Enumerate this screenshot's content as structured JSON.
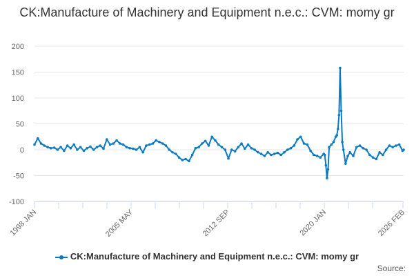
{
  "chart_data": {
    "type": "line",
    "title": "CK:Manufacture of Machinery and Equipment n.e.c.: CVM: momy gr",
    "xlabel": "",
    "ylabel": "",
    "ylim": [
      -100,
      200
    ],
    "yticks": [
      -100,
      -50,
      0,
      50,
      100,
      150,
      200
    ],
    "xlim": [
      "1998-01",
      "2026-02"
    ],
    "xtick_labels": [
      "1998 JAN",
      "2005 MAY",
      "2012 SEP",
      "2020 JAN",
      "2026 FEB"
    ],
    "grid": true,
    "legend_position": "bottom",
    "color": "#0a7ac2",
    "series": [
      {
        "name": "CK:Manufacture of Machinery and Equipment n.e.c.: CVM: momy gr",
        "x": [
          "1998-01",
          "1998-04",
          "1998-07",
          "1998-10",
          "1999-01",
          "1999-04",
          "1999-07",
          "1999-10",
          "2000-01",
          "2000-04",
          "2000-07",
          "2000-10",
          "2001-01",
          "2001-04",
          "2001-07",
          "2001-10",
          "2002-01",
          "2002-04",
          "2002-07",
          "2002-10",
          "2003-01",
          "2003-04",
          "2003-07",
          "2003-10",
          "2004-01",
          "2004-04",
          "2004-07",
          "2004-10",
          "2005-01",
          "2005-04",
          "2005-07",
          "2005-10",
          "2006-01",
          "2006-04",
          "2006-07",
          "2006-10",
          "2007-01",
          "2007-04",
          "2007-07",
          "2007-10",
          "2008-01",
          "2008-04",
          "2008-07",
          "2008-10",
          "2009-01",
          "2009-04",
          "2009-07",
          "2009-10",
          "2010-01",
          "2010-04",
          "2010-07",
          "2010-10",
          "2011-01",
          "2011-04",
          "2011-07",
          "2011-10",
          "2012-01",
          "2012-04",
          "2012-07",
          "2012-10",
          "2013-01",
          "2013-04",
          "2013-07",
          "2013-10",
          "2014-01",
          "2014-04",
          "2014-07",
          "2014-10",
          "2015-01",
          "2015-04",
          "2015-07",
          "2015-10",
          "2016-01",
          "2016-04",
          "2016-07",
          "2016-10",
          "2017-01",
          "2017-04",
          "2017-07",
          "2017-10",
          "2018-01",
          "2018-04",
          "2018-07",
          "2018-10",
          "2019-01",
          "2019-04",
          "2019-07",
          "2019-10",
          "2020-01",
          "2020-02",
          "2020-03",
          "2020-04",
          "2020-05",
          "2020-06",
          "2020-08",
          "2020-10",
          "2020-12",
          "2021-01",
          "2021-02",
          "2021-03",
          "2021-04",
          "2021-05",
          "2021-06",
          "2021-07",
          "2021-09",
          "2021-11",
          "2022-01",
          "2022-04",
          "2022-07",
          "2022-10",
          "2023-01",
          "2023-04",
          "2023-07",
          "2023-10",
          "2024-01",
          "2024-04",
          "2024-07",
          "2024-10",
          "2025-01",
          "2025-04",
          "2025-07",
          "2025-10",
          "2026-01",
          "2026-02"
        ],
        "values": [
          10,
          22,
          12,
          8,
          5,
          3,
          4,
          0,
          5,
          -2,
          8,
          3,
          10,
          0,
          5,
          -2,
          3,
          6,
          0,
          5,
          8,
          2,
          20,
          10,
          12,
          18,
          12,
          10,
          5,
          3,
          2,
          0,
          5,
          -5,
          8,
          10,
          12,
          18,
          15,
          12,
          8,
          0,
          -5,
          -8,
          -15,
          -20,
          -18,
          -22,
          -10,
          3,
          5,
          12,
          17,
          8,
          25,
          18,
          10,
          5,
          0,
          -17,
          0,
          -3,
          5,
          12,
          2,
          10,
          3,
          0,
          -5,
          -8,
          -12,
          -5,
          -10,
          -8,
          -6,
          -10,
          -5,
          0,
          3,
          8,
          20,
          25,
          12,
          10,
          -2,
          -10,
          -12,
          -15,
          -8,
          -10,
          -30,
          -55,
          -38,
          5,
          10,
          15,
          25,
          28,
          40,
          67,
          158,
          75,
          15,
          0,
          -27,
          -12,
          -5,
          -12,
          5,
          8,
          3,
          0,
          -10,
          -15,
          -18,
          -5,
          -10,
          0,
          8,
          5,
          8,
          10,
          -2,
          0
        ]
      }
    ]
  },
  "source_label": "Source:"
}
